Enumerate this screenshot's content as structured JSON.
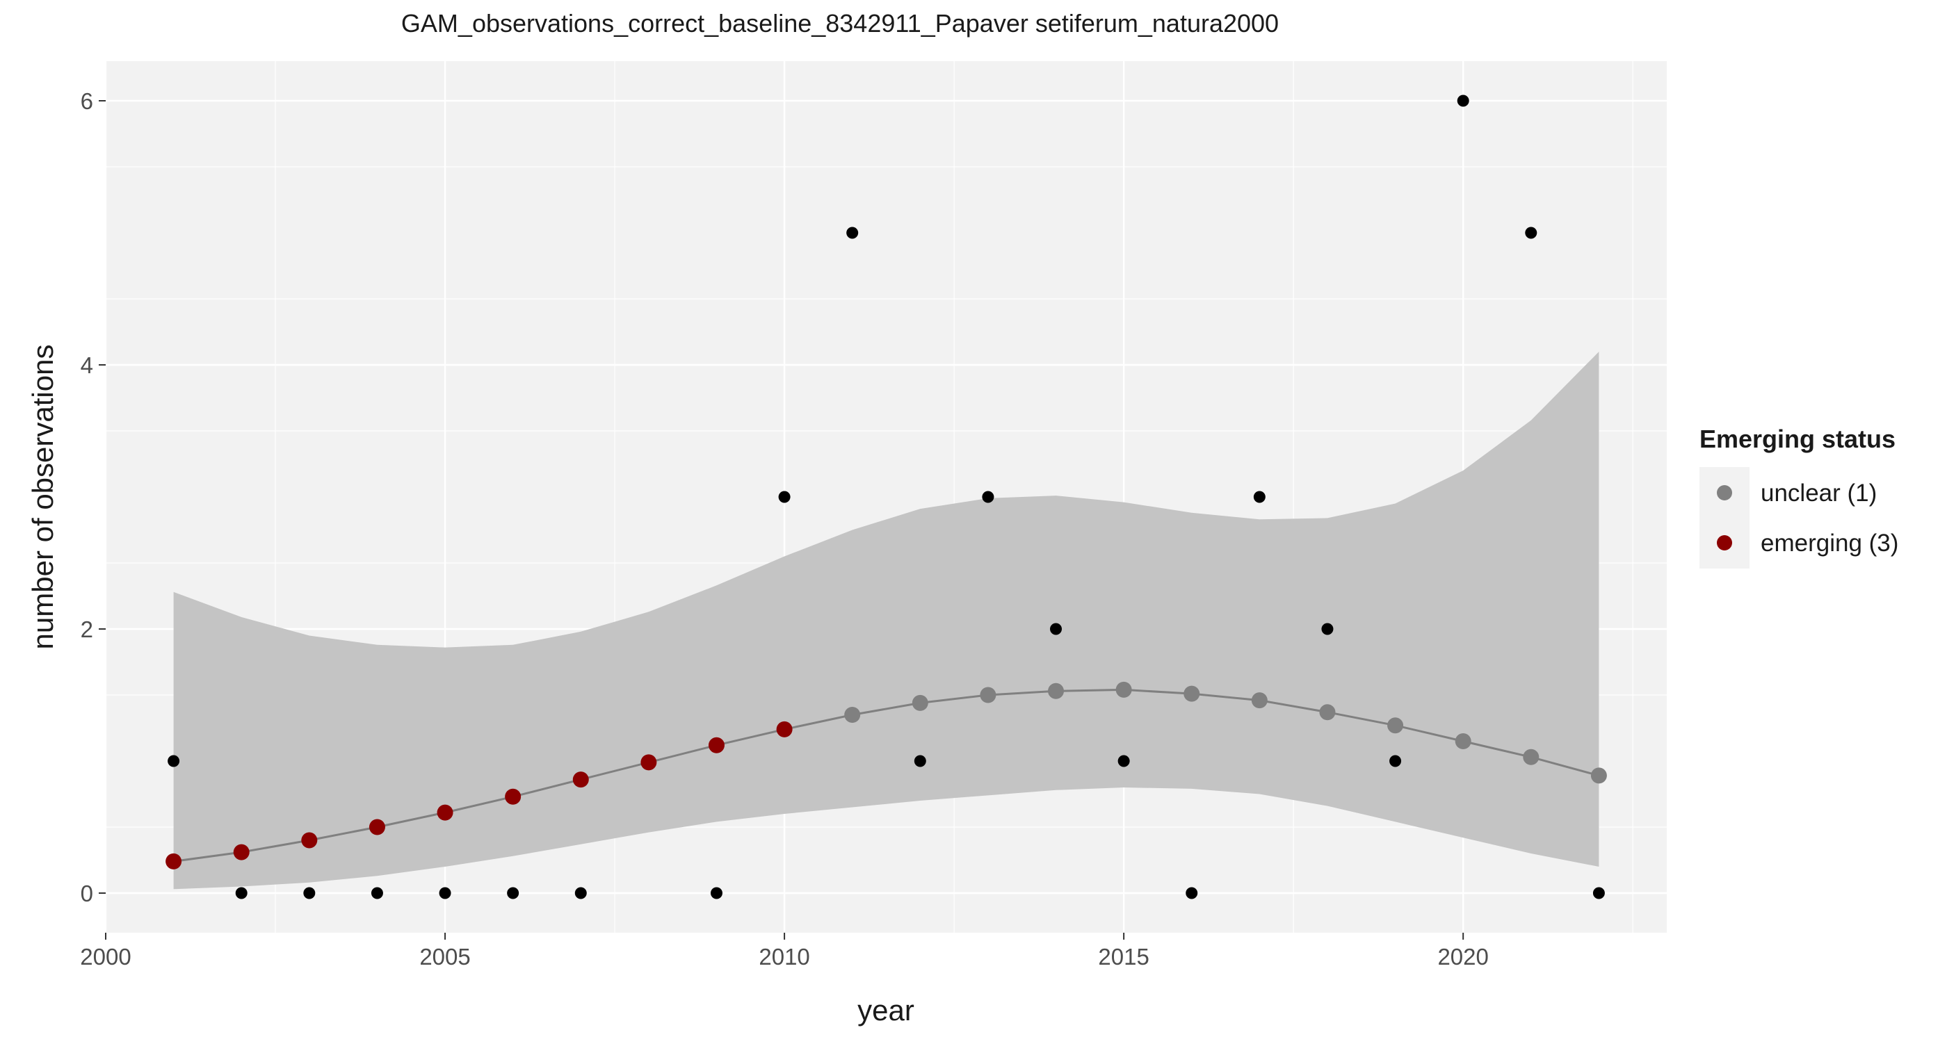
{
  "chart_data": {
    "type": "scatter",
    "title": "GAM_observations_correct_baseline_8342911_Papaver setiferum_natura2000",
    "xlabel": "year",
    "ylabel": "number of observations",
    "xlim": [
      2000,
      2023
    ],
    "ylim": [
      -0.3,
      6.3
    ],
    "x_ticks": [
      2000,
      2005,
      2010,
      2015,
      2020
    ],
    "y_ticks": [
      0,
      2,
      4,
      6
    ],
    "grid": true,
    "legend": {
      "title": "Emerging status",
      "position": "right",
      "entries": [
        {
          "label": "unclear (1)",
          "color": "#808080"
        },
        {
          "label": "emerging (3)",
          "color": "#8B0000"
        }
      ]
    },
    "observations": {
      "x": [
        2001,
        2002,
        2003,
        2004,
        2005,
        2006,
        2007,
        2009,
        2010,
        2011,
        2012,
        2013,
        2014,
        2015,
        2016,
        2017,
        2018,
        2019,
        2020,
        2021,
        2022
      ],
      "y": [
        1,
        0,
        0,
        0,
        0,
        0,
        0,
        0,
        3,
        5,
        1,
        3,
        2,
        1,
        0,
        3,
        2,
        1,
        6,
        5,
        0
      ],
      "color": "#000000"
    },
    "fit": {
      "x": [
        2001,
        2002,
        2003,
        2004,
        2005,
        2006,
        2007,
        2008,
        2009,
        2010,
        2011,
        2012,
        2013,
        2014,
        2015,
        2016,
        2017,
        2018,
        2019,
        2020,
        2021,
        2022
      ],
      "y": [
        0.24,
        0.31,
        0.4,
        0.5,
        0.61,
        0.73,
        0.86,
        0.99,
        1.12,
        1.24,
        1.35,
        1.44,
        1.5,
        1.53,
        1.54,
        1.51,
        1.46,
        1.37,
        1.27,
        1.15,
        1.03,
        0.89
      ],
      "lower": [
        0.03,
        0.05,
        0.08,
        0.13,
        0.2,
        0.28,
        0.37,
        0.46,
        0.54,
        0.6,
        0.65,
        0.7,
        0.74,
        0.78,
        0.8,
        0.79,
        0.75,
        0.66,
        0.54,
        0.42,
        0.3,
        0.2
      ],
      "upper": [
        2.28,
        2.09,
        1.95,
        1.88,
        1.86,
        1.88,
        1.98,
        2.13,
        2.33,
        2.55,
        2.75,
        2.91,
        2.99,
        3.01,
        2.96,
        2.88,
        2.83,
        2.84,
        2.95,
        3.2,
        3.58,
        4.1
      ],
      "status": [
        "emerging (3)",
        "emerging (3)",
        "emerging (3)",
        "emerging (3)",
        "emerging (3)",
        "emerging (3)",
        "emerging (3)",
        "emerging (3)",
        "emerging (3)",
        "emerging (3)",
        "unclear (1)",
        "unclear (1)",
        "unclear (1)",
        "unclear (1)",
        "unclear (1)",
        "unclear (1)",
        "unclear (1)",
        "unclear (1)",
        "unclear (1)",
        "unclear (1)",
        "unclear (1)",
        "unclear (1)"
      ],
      "line_color": "#808080",
      "band_color": "#C4C4C4"
    },
    "panel_background": "#F2F2F2"
  }
}
